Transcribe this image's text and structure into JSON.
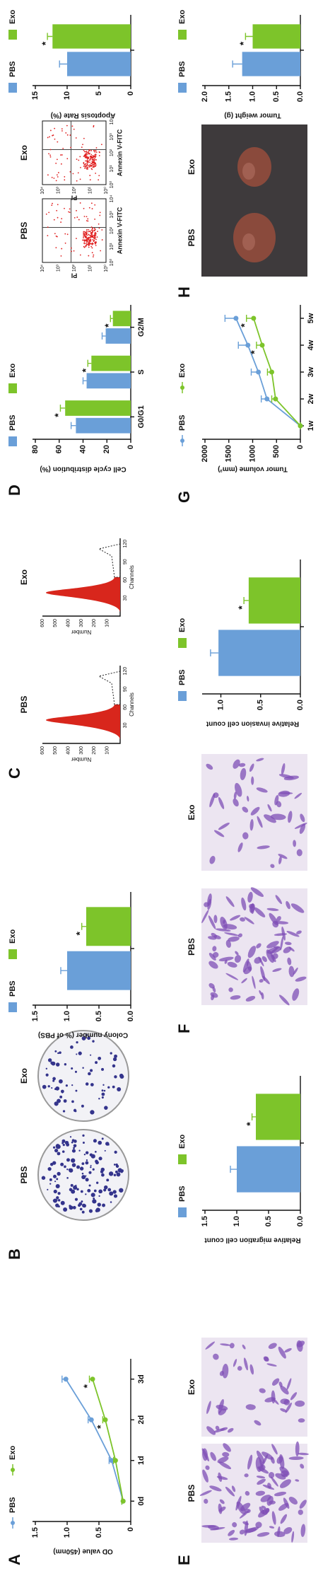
{
  "panel_labels": [
    "A",
    "B",
    "C",
    "D",
    "E",
    "F",
    "G",
    "H"
  ],
  "images": {
    "colony": [
      "PBS",
      "Exo"
    ],
    "histogram": {
      "labels": [
        "PBS",
        "Exo"
      ],
      "ylabel": "Number",
      "xlabel": "Channels",
      "yticks": [
        100,
        200,
        300,
        400,
        500,
        600
      ],
      "xticks": [
        30,
        60,
        90,
        120
      ]
    },
    "flow": {
      "labels": [
        "PBS",
        "Exo"
      ],
      "ylabel": "PI",
      "xlabel": "Annexin V-FITC",
      "ticks": [
        "10⁰",
        "10¹",
        "10²",
        "10³",
        "10⁴"
      ]
    },
    "migration": [
      "PBS",
      "Exo"
    ],
    "invasion": [
      "PBS",
      "Exo"
    ],
    "tumor": [
      "PBS",
      "Exo"
    ]
  },
  "chart_data": [
    {
      "type": "line",
      "ylabel": "OD value (450nm)",
      "categories": [
        "0d",
        "1d",
        "2d",
        "3d"
      ],
      "series": [
        {
          "name": "PBS",
          "color": "#6a9fd8",
          "values": [
            0.12,
            0.3,
            0.62,
            1.02
          ],
          "errors": [
            0.02,
            0.04,
            0.05,
            0.06
          ],
          "significance": [
            null,
            null,
            null,
            null
          ]
        },
        {
          "name": "Exo",
          "color": "#7dc42a",
          "values": [
            0.12,
            0.24,
            0.4,
            0.6
          ],
          "errors": [
            0.02,
            0.03,
            0.04,
            0.05
          ],
          "significance": [
            null,
            null,
            "*",
            "*"
          ]
        }
      ],
      "ylim": [
        0,
        1.5
      ],
      "yticks": [
        0,
        0.5,
        {
          "value": 1,
          "label": "1.0"
        },
        1.5
      ]
    },
    {
      "type": "bar",
      "ylabel": "Colony number (% of PBS)",
      "categories": [
        null
      ],
      "series": [
        {
          "name": "PBS",
          "color": "#6a9fd8",
          "values": [
            1.0
          ],
          "errors": [
            0.1
          ],
          "significance": [
            null
          ]
        },
        {
          "name": "Exo",
          "color": "#7dc42a",
          "values": [
            0.7
          ],
          "errors": [
            0.07
          ],
          "significance": [
            "*"
          ]
        }
      ],
      "ylim": [
        0,
        1.5
      ],
      "yticks": [
        {
          "value": 0,
          "label": "0.0"
        },
        {
          "value": 0.5,
          "label": "0.5"
        },
        {
          "value": 1,
          "label": "1.0"
        },
        {
          "value": 1.5,
          "label": "1.5"
        }
      ]
    },
    {
      "type": "bar",
      "ylabel": "Cell cycle distribution (%)",
      "categories": [
        "G0/G1",
        "S",
        "G2/M"
      ],
      "series": [
        {
          "name": "PBS",
          "color": "#6a9fd8",
          "values": [
            46,
            37,
            21
          ],
          "errors": [
            4,
            3,
            3
          ],
          "significance": [
            null,
            null,
            null
          ]
        },
        {
          "name": "Exo",
          "color": "#7dc42a",
          "values": [
            55,
            33,
            15
          ],
          "errors": [
            4,
            3,
            2
          ],
          "significance": [
            "*",
            "*",
            "*"
          ]
        }
      ],
      "ylim": [
        0,
        80
      ],
      "yticks": [
        0,
        20,
        40,
        60,
        80
      ]
    },
    {
      "type": "bar",
      "ylabel": "Apoptosis Rate (%)",
      "categories": [
        null
      ],
      "series": [
        {
          "name": "PBS",
          "color": "#6a9fd8",
          "values": [
            10
          ],
          "errors": [
            1.2
          ],
          "significance": [
            null
          ]
        },
        {
          "name": "Exo",
          "color": "#7dc42a",
          "values": [
            12.3
          ],
          "errors": [
            0.8
          ],
          "significance": [
            "*"
          ]
        }
      ],
      "ylim": [
        0,
        15
      ],
      "yticks": [
        0,
        5,
        10,
        15
      ]
    },
    {
      "type": "bar",
      "ylabel": "Relative migration cell count",
      "categories": [
        null
      ],
      "series": [
        {
          "name": "PBS",
          "color": "#6a9fd8",
          "values": [
            1.0
          ],
          "errors": [
            0.1
          ],
          "significance": [
            null
          ]
        },
        {
          "name": "Exo",
          "color": "#7dc42a",
          "values": [
            0.7
          ],
          "errors": [
            0.06
          ],
          "significance": [
            "*"
          ]
        }
      ],
      "ylim": [
        0,
        1.5
      ],
      "yticks": [
        {
          "value": 0,
          "label": "0.0"
        },
        {
          "value": 0.5,
          "label": "0.5"
        },
        {
          "value": 1,
          "label": "1.0"
        },
        {
          "value": 1.5,
          "label": "1.5"
        }
      ]
    },
    {
      "type": "bar",
      "ylabel": "Relative invasion cell count",
      "categories": [
        null
      ],
      "series": [
        {
          "name": "PBS",
          "color": "#6a9fd8",
          "values": [
            1.03
          ],
          "errors": [
            0.1
          ],
          "significance": [
            null
          ]
        },
        {
          "name": "Exo",
          "color": "#7dc42a",
          "values": [
            0.65
          ],
          "errors": [
            0.06
          ],
          "significance": [
            "*"
          ]
        }
      ],
      "ylim": [
        0,
        1.2
      ],
      "yticks": [
        {
          "value": 0,
          "label": "0.0"
        },
        {
          "value": 0.5,
          "label": "0.5"
        },
        {
          "value": 1,
          "label": "1.0"
        }
      ]
    },
    {
      "type": "line",
      "ylabel": "Tumor volume (mm³)",
      "categories": [
        "1w",
        "2w",
        "3w",
        "4w",
        "5w"
      ],
      "series": [
        {
          "name": "PBS",
          "color": "#6a9fd8",
          "values": [
            0,
            700,
            880,
            1100,
            1350
          ],
          "errors": [
            0,
            120,
            150,
            200,
            230
          ],
          "significance": [
            null,
            null,
            null,
            null,
            null
          ]
        },
        {
          "name": "Exo",
          "color": "#7dc42a",
          "values": [
            0,
            520,
            600,
            800,
            980
          ],
          "errors": [
            0,
            80,
            90,
            120,
            150
          ],
          "significance": [
            null,
            null,
            null,
            "*",
            "*"
          ]
        }
      ],
      "ylim": [
        0,
        2000
      ],
      "yticks": [
        0,
        500,
        1000,
        1500,
        2000
      ]
    },
    {
      "type": "bar",
      "ylabel": "Tumor weight (g)",
      "categories": [
        null
      ],
      "series": [
        {
          "name": "PBS",
          "color": "#6a9fd8",
          "values": [
            1.22
          ],
          "errors": [
            0.2
          ],
          "significance": [
            null
          ]
        },
        {
          "name": "Exo",
          "color": "#7dc42a",
          "values": [
            1.0
          ],
          "errors": [
            0.15
          ],
          "significance": [
            "*"
          ]
        }
      ],
      "ylim": [
        0,
        2
      ],
      "yticks": [
        {
          "value": 0,
          "label": "0.0"
        },
        {
          "value": 0.5,
          "label": "0.5"
        },
        {
          "value": 1,
          "label": "1.0"
        },
        {
          "value": 1.5,
          "label": "1.5"
        },
        {
          "value": 2,
          "label": "2.0"
        }
      ]
    }
  ]
}
